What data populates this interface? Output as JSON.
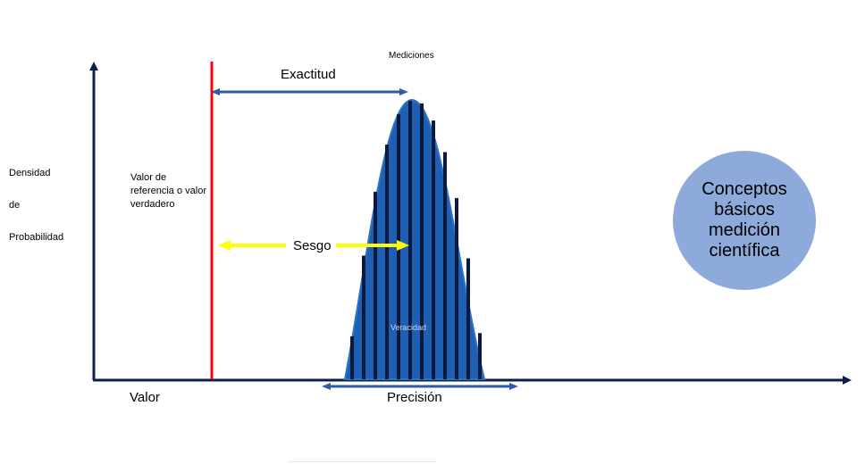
{
  "labels": {
    "mediciones": "Mediciones",
    "exactitud": "Exactitud",
    "y_axis_line1": "Densidad",
    "y_axis_line2": "de",
    "y_axis_line3": "Probabilidad",
    "reference_value": "Valor de referencia o valor verdadero",
    "sesgo": "Sesgo",
    "veracidad": "Veracidad",
    "valor": "Valor",
    "precision": "Precisión"
  },
  "concept_circle": {
    "text": "Conceptos básicos medición científica"
  },
  "colors": {
    "axis": "#0b1f4d",
    "reference_line": "#ff0000",
    "arrow_blue": "#2f5aa8",
    "arrow_yellow": "#ffff00",
    "curve_fill": "#1f5fb3",
    "bars": "#0a1a3d",
    "circle": "#8eaadb"
  }
}
